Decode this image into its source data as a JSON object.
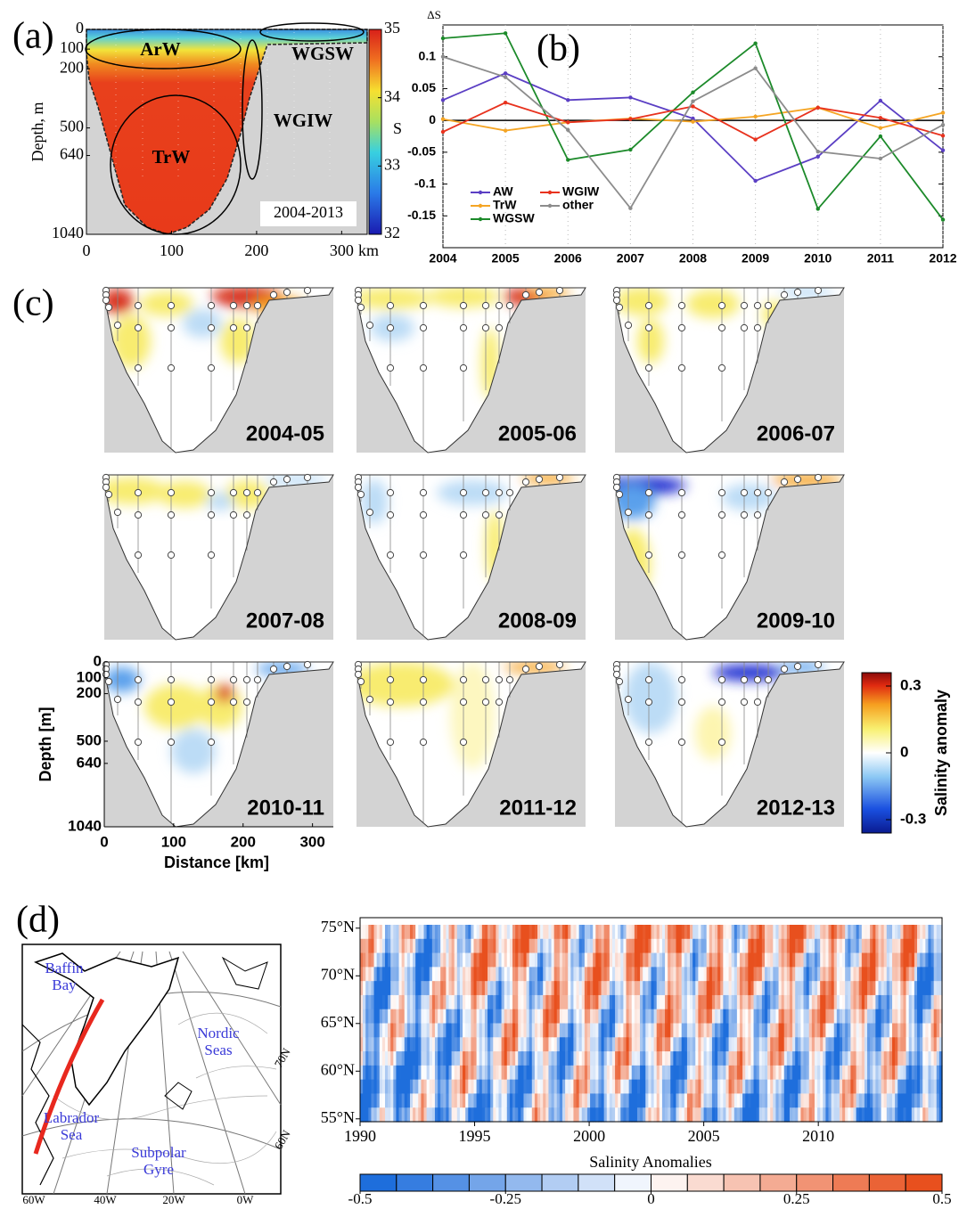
{
  "chart_data": [
    {
      "type": "section",
      "label": "(a)",
      "ylabel": "Depth, m",
      "xunit": "km",
      "xlim": [
        0,
        330
      ],
      "xticks": [
        0,
        100,
        200,
        300
      ],
      "ylim": [
        0,
        1040
      ],
      "yticks": [
        0,
        100,
        200,
        500,
        640,
        1040
      ],
      "colorbar": {
        "label": "S",
        "lim": [
          32,
          35
        ],
        "ticks": [
          32,
          33,
          34,
          35
        ]
      },
      "annotations": [
        "ArW",
        "WGSW",
        "WGIW",
        "TrW"
      ],
      "period": "2004-2013"
    },
    {
      "type": "line",
      "label": "(b)",
      "ylabel": "ΔS",
      "x": [
        2004,
        2005,
        2006,
        2007,
        2008,
        2009,
        2010,
        2011,
        2012
      ],
      "xlim": [
        2004,
        2012
      ],
      "xticks": [
        2004,
        2005,
        2006,
        2007,
        2008,
        2009,
        2010,
        2011,
        2012
      ],
      "ylim": [
        -0.2,
        0.15
      ],
      "yticks": [
        -0.15,
        -0.1,
        -0.05,
        0,
        0.05,
        0.1
      ],
      "series": [
        {
          "name": "AW",
          "color": "#5b3fc4",
          "values": [
            0.032,
            0.074,
            0.032,
            0.036,
            0.003,
            -0.095,
            -0.057,
            0.031,
            -0.047
          ]
        },
        {
          "name": "TrW",
          "color": "#f5a524",
          "values": [
            0.002,
            -0.016,
            -0.003,
            0.003,
            -0.002,
            0.006,
            0.02,
            -0.012,
            0.012
          ]
        },
        {
          "name": "WGSW",
          "color": "#1c8a2a",
          "values": [
            0.129,
            0.137,
            -0.062,
            -0.046,
            0.044,
            0.121,
            -0.139,
            -0.025,
            -0.156
          ]
        },
        {
          "name": "WGIW",
          "color": "#e8321e",
          "values": [
            -0.018,
            0.028,
            -0.003,
            0.002,
            0.022,
            -0.03,
            0.02,
            0.004,
            -0.024
          ]
        },
        {
          "name": "other",
          "color": "#8c8c8c",
          "values": [
            0.1,
            0.068,
            -0.015,
            -0.138,
            0.03,
            0.082,
            -0.049,
            -0.06,
            -0.007
          ]
        }
      ]
    },
    {
      "type": "section",
      "label": "(c)",
      "panels": [
        "2004-05",
        "2005-06",
        "2006-07",
        "2007-08",
        "2008-09",
        "2009-10",
        "2010-11",
        "2011-12",
        "2012-13"
      ],
      "ylabel": "Depth [m]",
      "xlabel": "Distance [km]",
      "xlim": [
        0,
        330
      ],
      "xticks": [
        0,
        100,
        200,
        300
      ],
      "ylim": [
        0,
        1040
      ],
      "yticks": [
        0,
        100,
        200,
        500,
        640,
        1040
      ],
      "colorbar": {
        "label": "Salinity anomaly",
        "lim": [
          -0.36,
          0.36
        ],
        "ticks": [
          -0.3,
          0,
          0.3
        ]
      }
    },
    {
      "type": "map",
      "label": "(d)",
      "regions": [
        "Baffin Bay",
        "Nordic Seas",
        "Labrador Sea",
        "Subpolar Gyre"
      ],
      "parallels": [
        "70N",
        "60N"
      ],
      "meridians": [
        "60W",
        "40W",
        "20W",
        "0W"
      ]
    },
    {
      "type": "heatmap",
      "xlim": [
        1990,
        2015.4
      ],
      "xticks": [
        1990,
        1995,
        2000,
        2005,
        2010
      ],
      "ylim": [
        54.7,
        76.1
      ],
      "yticks": [
        {
          "value": 55,
          "label": "55°N"
        },
        {
          "value": 60,
          "label": "60°N"
        },
        {
          "value": 65,
          "label": "65°N"
        },
        {
          "value": 70,
          "label": "70°N"
        },
        {
          "value": 75,
          "label": "75°N"
        }
      ],
      "colorbar": {
        "label": "Salinity Anomalies",
        "lim": [
          -0.5,
          0.5
        ],
        "ticks": [
          -0.5,
          -0.25,
          0,
          0.25,
          0.5
        ]
      }
    }
  ]
}
